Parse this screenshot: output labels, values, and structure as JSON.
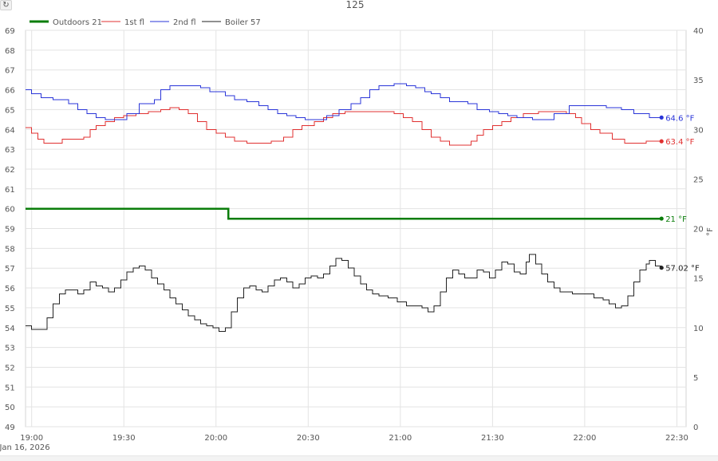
{
  "chart_data": {
    "type": "line",
    "title": "125",
    "date_label": "Jan 16, 2026",
    "x_ticks": [
      "19:00",
      "19:30",
      "20:00",
      "20:30",
      "21:00",
      "21:30",
      "22:00",
      "22:30"
    ],
    "x_range": [
      "18:58",
      "22:33"
    ],
    "y_left": {
      "ticks": [
        49,
        50,
        51,
        52,
        53,
        54,
        55,
        56,
        57,
        58,
        59,
        60,
        61,
        62,
        63,
        64,
        65,
        66,
        67,
        68,
        69
      ],
      "range": [
        49,
        69
      ]
    },
    "y_right": {
      "label": "°F",
      "ticks": [
        0,
        5,
        10,
        15,
        20,
        25,
        30,
        35,
        40
      ],
      "range": [
        0,
        40
      ]
    },
    "grid": true,
    "legend_position": "top-left",
    "series": [
      {
        "name": "Outdoors 21",
        "color": "#0a7d0a",
        "axis": "right",
        "stroke": "thick",
        "end_label": "21 °F",
        "points": [
          [
            "18:58",
            22
          ],
          [
            "20:04",
            22
          ],
          [
            "20:04",
            21
          ],
          [
            "22:25",
            21
          ]
        ]
      },
      {
        "name": "1st fl",
        "color": "#e03030",
        "axis": "left",
        "stroke": "thin",
        "end_label": "63.4 °F",
        "points": [
          [
            "18:58",
            64.1
          ],
          [
            "19:00",
            63.8
          ],
          [
            "19:02",
            63.5
          ],
          [
            "19:04",
            63.3
          ],
          [
            "19:07",
            63.3
          ],
          [
            "19:10",
            63.5
          ],
          [
            "19:14",
            63.5
          ],
          [
            "19:17",
            63.6
          ],
          [
            "19:19",
            64.0
          ],
          [
            "19:21",
            64.2
          ],
          [
            "19:24",
            64.4
          ],
          [
            "19:27",
            64.6
          ],
          [
            "19:30",
            64.7
          ],
          [
            "19:34",
            64.8
          ],
          [
            "19:38",
            64.9
          ],
          [
            "19:42",
            65.0
          ],
          [
            "19:45",
            65.1
          ],
          [
            "19:48",
            65.0
          ],
          [
            "19:51",
            64.8
          ],
          [
            "19:54",
            64.4
          ],
          [
            "19:57",
            64.0
          ],
          [
            "20:00",
            63.8
          ],
          [
            "20:03",
            63.6
          ],
          [
            "20:06",
            63.4
          ],
          [
            "20:10",
            63.3
          ],
          [
            "20:14",
            63.3
          ],
          [
            "20:18",
            63.4
          ],
          [
            "20:22",
            63.6
          ],
          [
            "20:25",
            64.0
          ],
          [
            "20:28",
            64.2
          ],
          [
            "20:32",
            64.4
          ],
          [
            "20:35",
            64.6
          ],
          [
            "20:38",
            64.8
          ],
          [
            "20:42",
            64.9
          ],
          [
            "20:50",
            64.9
          ],
          [
            "20:58",
            64.8
          ],
          [
            "21:01",
            64.6
          ],
          [
            "21:04",
            64.4
          ],
          [
            "21:07",
            64.0
          ],
          [
            "21:10",
            63.6
          ],
          [
            "21:13",
            63.4
          ],
          [
            "21:16",
            63.2
          ],
          [
            "21:20",
            63.2
          ],
          [
            "21:23",
            63.4
          ],
          [
            "21:25",
            63.7
          ],
          [
            "21:27",
            64.0
          ],
          [
            "21:30",
            64.2
          ],
          [
            "21:33",
            64.4
          ],
          [
            "21:36",
            64.6
          ],
          [
            "21:40",
            64.8
          ],
          [
            "21:45",
            64.9
          ],
          [
            "21:50",
            64.9
          ],
          [
            "21:54",
            64.8
          ],
          [
            "21:57",
            64.6
          ],
          [
            "21:59",
            64.3
          ],
          [
            "22:02",
            64.0
          ],
          [
            "22:05",
            63.8
          ],
          [
            "22:09",
            63.5
          ],
          [
            "22:13",
            63.3
          ],
          [
            "22:17",
            63.3
          ],
          [
            "22:20",
            63.4
          ],
          [
            "22:25",
            63.4
          ]
        ]
      },
      {
        "name": "2nd fl",
        "color": "#2a35d8",
        "axis": "left",
        "stroke": "thin",
        "end_label": "64.6 °F",
        "points": [
          [
            "18:58",
            66.0
          ],
          [
            "19:00",
            65.8
          ],
          [
            "19:03",
            65.6
          ],
          [
            "19:07",
            65.5
          ],
          [
            "19:12",
            65.3
          ],
          [
            "19:15",
            65.0
          ],
          [
            "19:18",
            64.8
          ],
          [
            "19:21",
            64.6
          ],
          [
            "19:24",
            64.5
          ],
          [
            "19:28",
            64.5
          ],
          [
            "19:31",
            64.8
          ],
          [
            "19:35",
            65.3
          ],
          [
            "19:40",
            65.5
          ],
          [
            "19:42",
            66.0
          ],
          [
            "19:45",
            66.2
          ],
          [
            "19:52",
            66.2
          ],
          [
            "19:55",
            66.1
          ],
          [
            "19:58",
            65.9
          ],
          [
            "20:03",
            65.7
          ],
          [
            "20:06",
            65.5
          ],
          [
            "20:10",
            65.4
          ],
          [
            "20:14",
            65.2
          ],
          [
            "20:17",
            65.0
          ],
          [
            "20:20",
            64.8
          ],
          [
            "20:23",
            64.7
          ],
          [
            "20:26",
            64.6
          ],
          [
            "20:29",
            64.5
          ],
          [
            "20:33",
            64.5
          ],
          [
            "20:36",
            64.7
          ],
          [
            "20:40",
            65.0
          ],
          [
            "20:44",
            65.3
          ],
          [
            "20:47",
            65.6
          ],
          [
            "20:50",
            66.0
          ],
          [
            "20:53",
            66.2
          ],
          [
            "20:58",
            66.3
          ],
          [
            "21:02",
            66.2
          ],
          [
            "21:05",
            66.1
          ],
          [
            "21:08",
            65.9
          ],
          [
            "21:10",
            65.8
          ],
          [
            "21:13",
            65.6
          ],
          [
            "21:16",
            65.4
          ],
          [
            "21:22",
            65.3
          ],
          [
            "21:25",
            65.0
          ],
          [
            "21:29",
            64.9
          ],
          [
            "21:32",
            64.8
          ],
          [
            "21:35",
            64.7
          ],
          [
            "21:38",
            64.6
          ],
          [
            "21:43",
            64.5
          ],
          [
            "21:47",
            64.5
          ],
          [
            "21:50",
            64.8
          ],
          [
            "21:55",
            65.2
          ],
          [
            "22:00",
            65.2
          ],
          [
            "22:04",
            65.2
          ],
          [
            "22:07",
            65.1
          ],
          [
            "22:12",
            65.0
          ],
          [
            "22:16",
            64.8
          ],
          [
            "22:21",
            64.6
          ],
          [
            "22:25",
            64.6
          ]
        ]
      },
      {
        "name": "Boiler 57",
        "color": "#222222",
        "axis": "left",
        "stroke": "thin",
        "end_label": "57.02 °F",
        "points": [
          [
            "18:58",
            54.1
          ],
          [
            "19:00",
            53.9
          ],
          [
            "19:03",
            53.9
          ],
          [
            "19:05",
            54.5
          ],
          [
            "19:07",
            55.2
          ],
          [
            "19:09",
            55.7
          ],
          [
            "19:11",
            55.9
          ],
          [
            "19:13",
            55.9
          ],
          [
            "19:15",
            55.7
          ],
          [
            "19:17",
            55.9
          ],
          [
            "19:19",
            56.3
          ],
          [
            "19:21",
            56.1
          ],
          [
            "19:23",
            56.0
          ],
          [
            "19:25",
            55.8
          ],
          [
            "19:27",
            56.0
          ],
          [
            "19:29",
            56.4
          ],
          [
            "19:31",
            56.8
          ],
          [
            "19:33",
            57.0
          ],
          [
            "19:35",
            57.1
          ],
          [
            "19:37",
            56.9
          ],
          [
            "19:39",
            56.5
          ],
          [
            "19:41",
            56.2
          ],
          [
            "19:43",
            55.9
          ],
          [
            "19:45",
            55.5
          ],
          [
            "19:47",
            55.2
          ],
          [
            "19:49",
            54.9
          ],
          [
            "19:51",
            54.6
          ],
          [
            "19:53",
            54.4
          ],
          [
            "19:55",
            54.2
          ],
          [
            "19:57",
            54.1
          ],
          [
            "19:59",
            54.0
          ],
          [
            "20:01",
            53.8
          ],
          [
            "20:03",
            54.0
          ],
          [
            "20:05",
            54.8
          ],
          [
            "20:07",
            55.5
          ],
          [
            "20:09",
            56.0
          ],
          [
            "20:11",
            56.1
          ],
          [
            "20:13",
            55.9
          ],
          [
            "20:15",
            55.8
          ],
          [
            "20:17",
            56.1
          ],
          [
            "20:19",
            56.4
          ],
          [
            "20:21",
            56.5
          ],
          [
            "20:23",
            56.3
          ],
          [
            "20:25",
            56.0
          ],
          [
            "20:27",
            56.2
          ],
          [
            "20:29",
            56.5
          ],
          [
            "20:31",
            56.6
          ],
          [
            "20:33",
            56.5
          ],
          [
            "20:35",
            56.7
          ],
          [
            "20:37",
            57.1
          ],
          [
            "20:39",
            57.5
          ],
          [
            "20:41",
            57.4
          ],
          [
            "20:43",
            57.0
          ],
          [
            "20:45",
            56.6
          ],
          [
            "20:47",
            56.2
          ],
          [
            "20:49",
            55.9
          ],
          [
            "20:51",
            55.7
          ],
          [
            "20:53",
            55.6
          ],
          [
            "20:56",
            55.5
          ],
          [
            "20:59",
            55.3
          ],
          [
            "21:02",
            55.1
          ],
          [
            "21:05",
            55.1
          ],
          [
            "21:07",
            55.0
          ],
          [
            "21:09",
            54.8
          ],
          [
            "21:11",
            55.1
          ],
          [
            "21:13",
            55.8
          ],
          [
            "21:15",
            56.5
          ],
          [
            "21:17",
            56.9
          ],
          [
            "21:19",
            56.7
          ],
          [
            "21:21",
            56.5
          ],
          [
            "21:23",
            56.5
          ],
          [
            "21:25",
            56.9
          ],
          [
            "21:27",
            56.8
          ],
          [
            "21:29",
            56.5
          ],
          [
            "21:31",
            56.9
          ],
          [
            "21:33",
            57.3
          ],
          [
            "21:35",
            57.2
          ],
          [
            "21:37",
            56.8
          ],
          [
            "21:39",
            56.7
          ],
          [
            "21:41",
            57.3
          ],
          [
            "21:42",
            57.7
          ],
          [
            "21:44",
            57.2
          ],
          [
            "21:46",
            56.7
          ],
          [
            "21:48",
            56.3
          ],
          [
            "21:50",
            56.0
          ],
          [
            "21:52",
            55.8
          ],
          [
            "21:56",
            55.7
          ],
          [
            "22:00",
            55.7
          ],
          [
            "22:03",
            55.5
          ],
          [
            "22:06",
            55.4
          ],
          [
            "22:08",
            55.2
          ],
          [
            "22:10",
            55.0
          ],
          [
            "22:12",
            55.1
          ],
          [
            "22:14",
            55.6
          ],
          [
            "22:16",
            56.3
          ],
          [
            "22:18",
            56.9
          ],
          [
            "22:20",
            57.2
          ],
          [
            "22:21",
            57.4
          ],
          [
            "22:23",
            57.1
          ],
          [
            "22:25",
            57.02
          ]
        ]
      }
    ]
  }
}
